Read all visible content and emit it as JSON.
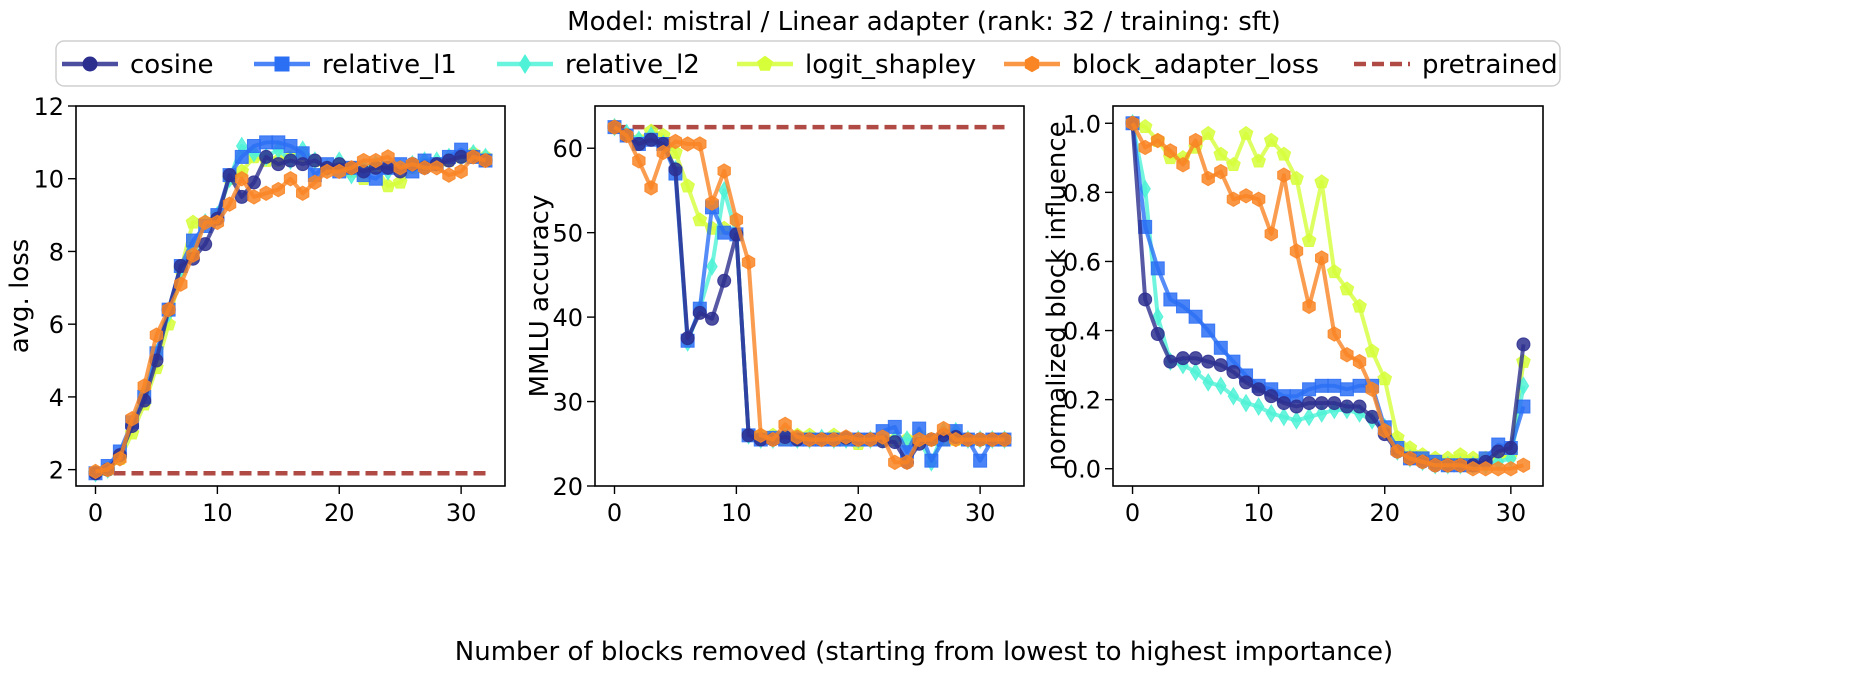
{
  "figure": {
    "title": "Model: mistral / Linear adapter (rank: 32 / training: sft)",
    "xlabel": "Number of blocks removed (starting from lowest to highest importance)"
  },
  "legend": {
    "placement": "top-center, above all panels",
    "entries": [
      {
        "name": "cosine",
        "color": "#2d2f8f",
        "marker": "circle",
        "style": "solid"
      },
      {
        "name": "relative_l1",
        "color": "#2b6ff5",
        "marker": "square",
        "style": "solid"
      },
      {
        "name": "relative_l2",
        "color": "#4ff2d7",
        "marker": "diamond",
        "style": "solid"
      },
      {
        "name": "logit_shapley",
        "color": "#d6ff3a",
        "marker": "pentagon",
        "style": "solid"
      },
      {
        "name": "block_adapter_loss",
        "color": "#f98524",
        "marker": "hexagon",
        "style": "solid"
      },
      {
        "name": "pretrained",
        "color": "#b04a45",
        "marker": "none",
        "style": "dashed"
      }
    ]
  },
  "chart_data": [
    {
      "type": "line",
      "ylabel": "avg. loss",
      "xlim": [
        -1.6,
        33.6
      ],
      "ylim": [
        1.55,
        12
      ],
      "xticks": [
        0,
        10,
        20,
        30
      ],
      "yticks": [
        2,
        4,
        6,
        8,
        10,
        12
      ],
      "grid": false,
      "x": [
        0,
        1,
        2,
        3,
        4,
        5,
        6,
        7,
        8,
        9,
        10,
        11,
        12,
        13,
        14,
        15,
        16,
        17,
        18,
        19,
        20,
        21,
        22,
        23,
        24,
        25,
        26,
        27,
        28,
        29,
        30,
        31,
        32
      ],
      "series": [
        {
          "name": "cosine",
          "values": [
            1.9,
            2.0,
            2.4,
            3.2,
            3.9,
            5.0,
            6.4,
            7.6,
            7.8,
            8.2,
            8.9,
            10.1,
            9.5,
            9.9,
            10.6,
            10.4,
            10.5,
            10.4,
            10.5,
            10.3,
            10.4,
            10.3,
            10.2,
            10.3,
            10.3,
            10.2,
            10.4,
            10.3,
            10.4,
            10.5,
            10.6,
            10.6,
            10.5
          ]
        },
        {
          "name": "relative_l1",
          "values": [
            1.9,
            2.1,
            2.5,
            3.3,
            4.0,
            5.2,
            6.4,
            7.6,
            8.3,
            8.7,
            9.0,
            10.1,
            10.6,
            10.9,
            11.0,
            11.0,
            10.9,
            10.7,
            10.1,
            10.4,
            10.2,
            10.3,
            10.1,
            10.0,
            10.3,
            10.4,
            10.2,
            10.5,
            10.4,
            10.6,
            10.8,
            10.6,
            10.5
          ]
        },
        {
          "name": "relative_l2",
          "values": [
            1.9,
            2.0,
            2.4,
            3.3,
            4.1,
            5.2,
            6.3,
            7.5,
            8.1,
            8.8,
            9.0,
            10.0,
            10.9,
            10.7,
            10.6,
            10.8,
            10.5,
            10.8,
            10.5,
            10.3,
            10.5,
            10.1,
            10.3,
            10.4,
            10.2,
            10.3,
            10.4,
            10.5,
            10.5,
            10.6,
            10.6,
            10.7,
            10.6
          ]
        },
        {
          "name": "logit_shapley",
          "values": [
            1.9,
            2.0,
            2.3,
            3.0,
            3.8,
            4.8,
            6.0,
            7.5,
            8.8,
            8.8,
            9.0,
            10.0,
            10.2,
            10.6,
            10.5,
            10.5,
            10.6,
            10.6,
            10.5,
            10.3,
            10.4,
            10.2,
            10.0,
            10.3,
            9.8,
            9.9,
            10.3,
            10.4,
            10.4,
            10.5,
            10.6,
            10.7,
            10.6
          ]
        },
        {
          "name": "block_adapter_loss",
          "values": [
            1.95,
            2.0,
            2.3,
            3.4,
            4.3,
            5.7,
            6.4,
            7.1,
            7.9,
            8.8,
            8.8,
            9.3,
            10.0,
            9.5,
            9.6,
            9.7,
            10.0,
            9.6,
            9.9,
            10.2,
            10.2,
            10.3,
            10.5,
            10.5,
            10.6,
            10.3,
            10.4,
            10.3,
            10.3,
            10.1,
            10.2,
            10.6,
            10.5
          ]
        },
        {
          "name": "pretrained",
          "values": [
            1.9,
            1.9
          ],
          "x": [
            0,
            32
          ]
        }
      ]
    },
    {
      "type": "line",
      "ylabel": "MMLU accuracy",
      "xlim": [
        -1.6,
        33.6
      ],
      "ylim": [
        20,
        65
      ],
      "xticks": [
        0,
        10,
        20,
        30
      ],
      "yticks": [
        20,
        30,
        40,
        50,
        60
      ],
      "grid": false,
      "x": [
        0,
        1,
        2,
        3,
        4,
        5,
        6,
        7,
        8,
        9,
        10,
        11,
        12,
        13,
        14,
        15,
        16,
        17,
        18,
        19,
        20,
        21,
        22,
        23,
        24,
        25,
        26,
        27,
        28,
        29,
        30,
        31,
        32
      ],
      "series": [
        {
          "name": "cosine",
          "values": [
            62.5,
            61.5,
            60.5,
            61.0,
            60.5,
            57.5,
            37.5,
            40.5,
            39.8,
            44.3,
            49.8,
            26.0,
            25.5,
            25.5,
            25.8,
            25.5,
            25.5,
            25.5,
            25.5,
            25.7,
            25.5,
            25.5,
            25.3,
            25.2,
            22.8,
            25.0,
            25.5,
            26.0,
            25.8,
            25.5,
            25.5,
            25.5,
            25.5
          ]
        },
        {
          "name": "relative_l1",
          "values": [
            62.5,
            61.5,
            60.5,
            61.0,
            60.5,
            57.0,
            37.2,
            41.0,
            53.0,
            50.0,
            49.8,
            26.0,
            25.5,
            25.7,
            25.5,
            25.5,
            25.5,
            25.5,
            25.5,
            25.5,
            25.5,
            25.5,
            26.5,
            27.0,
            24.0,
            26.8,
            23.0,
            25.5,
            26.5,
            25.5,
            23.0,
            25.5,
            25.5
          ]
        },
        {
          "name": "relative_l2",
          "values": [
            62.5,
            61.8,
            61.0,
            61.5,
            60.5,
            57.5,
            37.0,
            41.0,
            46.0,
            55.0,
            49.8,
            26.0,
            25.5,
            25.5,
            26.0,
            25.5,
            25.5,
            25.7,
            25.5,
            25.5,
            25.5,
            25.5,
            25.5,
            25.5,
            25.5,
            25.5,
            22.8,
            26.5,
            26.5,
            25.5,
            25.5,
            25.5,
            25.5
          ]
        },
        {
          "name": "logit_shapley",
          "values": [
            62.5,
            61.5,
            61.0,
            62.0,
            61.5,
            59.5,
            55.5,
            51.5,
            50.5,
            50.5,
            49.8,
            26.0,
            26.0,
            26.0,
            25.5,
            26.0,
            26.0,
            25.5,
            26.0,
            25.5,
            25.0,
            25.5,
            25.5,
            25.5,
            25.5,
            26.0,
            25.5,
            25.5,
            25.5,
            25.5,
            25.5,
            25.5,
            25.5
          ]
        },
        {
          "name": "block_adapter_loss",
          "values": [
            62.5,
            61.5,
            58.5,
            55.3,
            59.5,
            60.8,
            60.5,
            60.5,
            53.5,
            57.3,
            51.5,
            46.5,
            26.0,
            25.5,
            27.3,
            25.8,
            25.5,
            25.5,
            25.5,
            25.8,
            25.5,
            25.5,
            25.8,
            22.8,
            22.8,
            25.5,
            25.5,
            26.8,
            25.5,
            25.5,
            25.5,
            25.5,
            25.5
          ]
        },
        {
          "name": "pretrained",
          "values": [
            62.5,
            62.5
          ],
          "x": [
            0,
            32
          ]
        }
      ]
    },
    {
      "type": "line",
      "ylabel": "normalized block influence",
      "xlim": [
        -1.55,
        32.55
      ],
      "ylim": [
        -0.05,
        1.05
      ],
      "xticks": [
        0,
        10,
        20,
        30
      ],
      "yticks": [
        0.0,
        0.2,
        0.4,
        0.6,
        0.8,
        1.0
      ],
      "grid": false,
      "x": [
        0,
        1,
        2,
        3,
        4,
        5,
        6,
        7,
        8,
        9,
        10,
        11,
        12,
        13,
        14,
        15,
        16,
        17,
        18,
        19,
        20,
        21,
        22,
        23,
        24,
        25,
        26,
        27,
        28,
        29,
        30,
        31
      ],
      "series": [
        {
          "name": "cosine",
          "values": [
            1.0,
            0.49,
            0.39,
            0.31,
            0.32,
            0.32,
            0.31,
            0.3,
            0.28,
            0.25,
            0.23,
            0.21,
            0.19,
            0.18,
            0.19,
            0.19,
            0.19,
            0.18,
            0.18,
            0.15,
            0.1,
            0.05,
            0.03,
            0.02,
            0.01,
            0.01,
            0.01,
            0.01,
            0.02,
            0.05,
            0.06,
            0.36
          ]
        },
        {
          "name": "relative_l1",
          "values": [
            1.0,
            0.7,
            0.58,
            0.49,
            0.47,
            0.44,
            0.4,
            0.35,
            0.31,
            0.27,
            0.24,
            0.23,
            0.21,
            0.21,
            0.23,
            0.24,
            0.24,
            0.23,
            0.24,
            0.24,
            0.12,
            0.06,
            0.03,
            0.03,
            0.02,
            0.01,
            0.01,
            0.01,
            0.03,
            0.07,
            0.06,
            0.18
          ]
        },
        {
          "name": "relative_l2",
          "values": [
            1.0,
            0.81,
            0.44,
            0.31,
            0.3,
            0.28,
            0.25,
            0.24,
            0.21,
            0.19,
            0.18,
            0.16,
            0.15,
            0.14,
            0.15,
            0.16,
            0.17,
            0.17,
            0.16,
            0.14,
            0.12,
            0.05,
            0.03,
            0.02,
            0.01,
            0.01,
            0.01,
            0.01,
            0.01,
            0.02,
            0.03,
            0.24
          ]
        },
        {
          "name": "logit_shapley",
          "values": [
            1.0,
            0.99,
            0.95,
            0.9,
            0.9,
            0.93,
            0.97,
            0.91,
            0.88,
            0.97,
            0.89,
            0.95,
            0.91,
            0.84,
            0.66,
            0.83,
            0.57,
            0.52,
            0.47,
            0.34,
            0.26,
            0.09,
            0.06,
            0.04,
            0.03,
            0.03,
            0.04,
            0.03,
            0.03,
            0.03,
            0.04,
            0.31
          ]
        },
        {
          "name": "block_adapter_loss",
          "values": [
            1.0,
            0.93,
            0.95,
            0.92,
            0.88,
            0.95,
            0.84,
            0.86,
            0.78,
            0.79,
            0.78,
            0.68,
            0.85,
            0.63,
            0.47,
            0.61,
            0.39,
            0.33,
            0.31,
            0.23,
            0.11,
            0.05,
            0.03,
            0.02,
            0.01,
            0.01,
            0.01,
            0.0,
            0.0,
            0.0,
            0.0,
            0.01
          ]
        }
      ]
    }
  ]
}
